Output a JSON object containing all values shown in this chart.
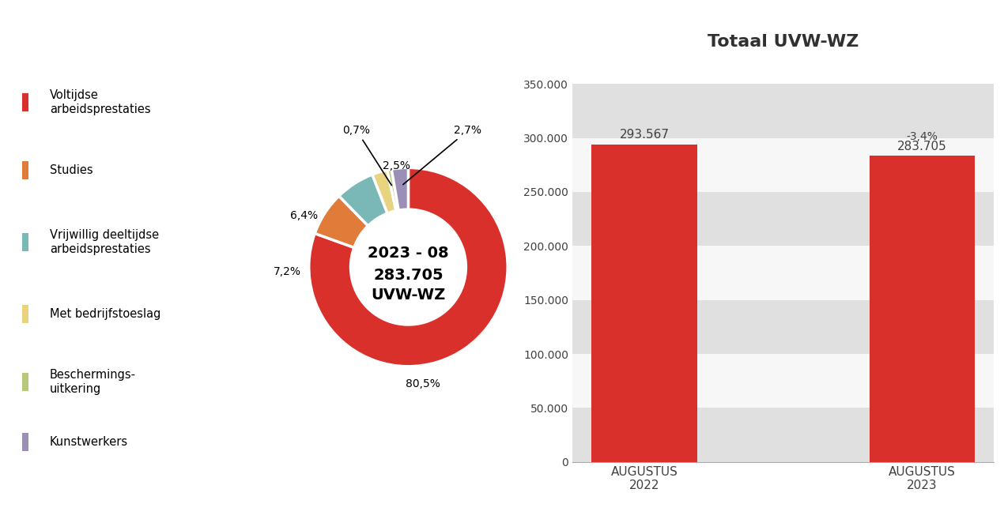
{
  "pie_values": [
    80.5,
    7.2,
    6.4,
    2.5,
    0.7,
    2.7
  ],
  "pie_labels": [
    "80,5%",
    "7,2%",
    "6,4%",
    "2,5%",
    "0,7%",
    "2,7%"
  ],
  "pie_colors": [
    "#d9302c",
    "#e07b39",
    "#7ab8b8",
    "#e8d480",
    "#b8c87a",
    "#9b8fb8"
  ],
  "legend_labels": [
    "Voltijdse\narbeidsprestaties",
    "Studies",
    "Vrijwillig deeltijdse\narbeidsprestaties",
    "Met bedrijfstoeslag",
    "Beschermings-\nuitkering",
    "Kunstwerkers"
  ],
  "center_line1": "2023 - 08",
  "center_line2": "283.705",
  "center_line3": "UVW-WZ",
  "bar_categories": [
    "AUGUSTUS\n2022",
    "AUGUSTUS\n2023"
  ],
  "bar_values": [
    293567,
    283705
  ],
  "bar_color": "#d9302c",
  "bar_label_1": "293.567",
  "bar_label_2": "283.705",
  "bar_change_label": "-3,4%",
  "bar_title": "Totaal UVW-WZ",
  "bar_ylim": [
    0,
    370000
  ],
  "bar_yticks": [
    0,
    50000,
    100000,
    150000,
    200000,
    250000,
    300000,
    350000
  ],
  "bar_ytick_labels": [
    "0",
    "50.000",
    "100.000",
    "150.000",
    "200.000",
    "250.000",
    "300.000",
    "350.000"
  ],
  "background_color": "#ffffff",
  "text_color": "#404040",
  "stripe_color": "#e0e0e0"
}
